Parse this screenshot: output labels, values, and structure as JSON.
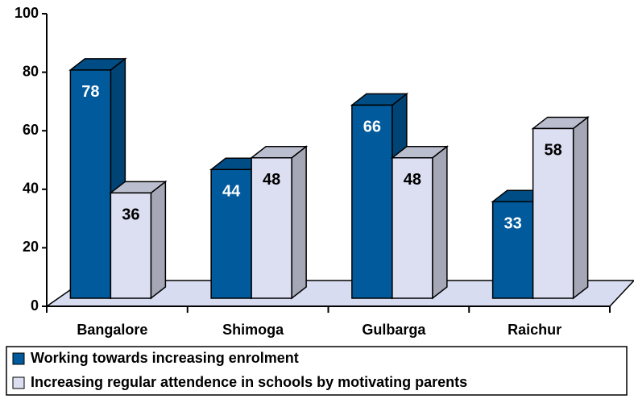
{
  "chart_data": {
    "type": "bar3d",
    "categories": [
      "Bangalore",
      "Shimoga",
      "Gulbarga",
      "Raichur"
    ],
    "series": [
      {
        "name": "Working towards increasing enrolment",
        "color": "#005a9c",
        "values": [
          78,
          44,
          66,
          33
        ]
      },
      {
        "name": "Increasing regular attendence in schools by motivating parents",
        "color": "#dcdff2",
        "values": [
          36,
          48,
          48,
          58
        ]
      }
    ],
    "ylim": [
      0,
      100
    ],
    "yticks": [
      0,
      20,
      40,
      60,
      80,
      100
    ],
    "legend": "bottom"
  }
}
